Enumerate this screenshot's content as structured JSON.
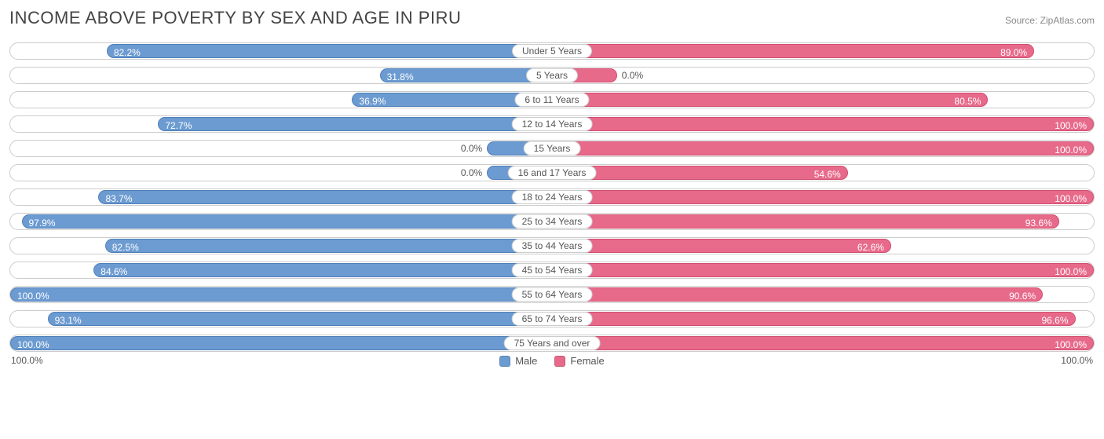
{
  "title": "INCOME ABOVE POVERTY BY SEX AND AGE IN PIRU",
  "source": "Source: ZipAtlas.com",
  "chart": {
    "type": "diverging-bar",
    "male_color": "#6c9bd1",
    "female_color": "#e86a8a",
    "male_border": "#4f7fb8",
    "female_border": "#d14e70",
    "row_border": "#cccccc",
    "background": "#ffffff",
    "label_fontsize": 12,
    "inside_threshold_pct": 18,
    "min_bar_pct": 12,
    "axis_left": "100.0%",
    "axis_right": "100.0%",
    "legend": [
      {
        "label": "Male",
        "color": "#6c9bd1"
      },
      {
        "label": "Female",
        "color": "#e86a8a"
      }
    ],
    "rows": [
      {
        "category": "Under 5 Years",
        "male": 82.2,
        "female": 89.0
      },
      {
        "category": "5 Years",
        "male": 31.8,
        "female": 0.0
      },
      {
        "category": "6 to 11 Years",
        "male": 36.9,
        "female": 80.5
      },
      {
        "category": "12 to 14 Years",
        "male": 72.7,
        "female": 100.0
      },
      {
        "category": "15 Years",
        "male": 0.0,
        "female": 100.0
      },
      {
        "category": "16 and 17 Years",
        "male": 0.0,
        "female": 54.6
      },
      {
        "category": "18 to 24 Years",
        "male": 83.7,
        "female": 100.0
      },
      {
        "category": "25 to 34 Years",
        "male": 97.9,
        "female": 93.6
      },
      {
        "category": "35 to 44 Years",
        "male": 82.5,
        "female": 62.6
      },
      {
        "category": "45 to 54 Years",
        "male": 84.6,
        "female": 100.0
      },
      {
        "category": "55 to 64 Years",
        "male": 100.0,
        "female": 90.6
      },
      {
        "category": "65 to 74 Years",
        "male": 93.1,
        "female": 96.6
      },
      {
        "category": "75 Years and over",
        "male": 100.0,
        "female": 100.0
      }
    ]
  }
}
